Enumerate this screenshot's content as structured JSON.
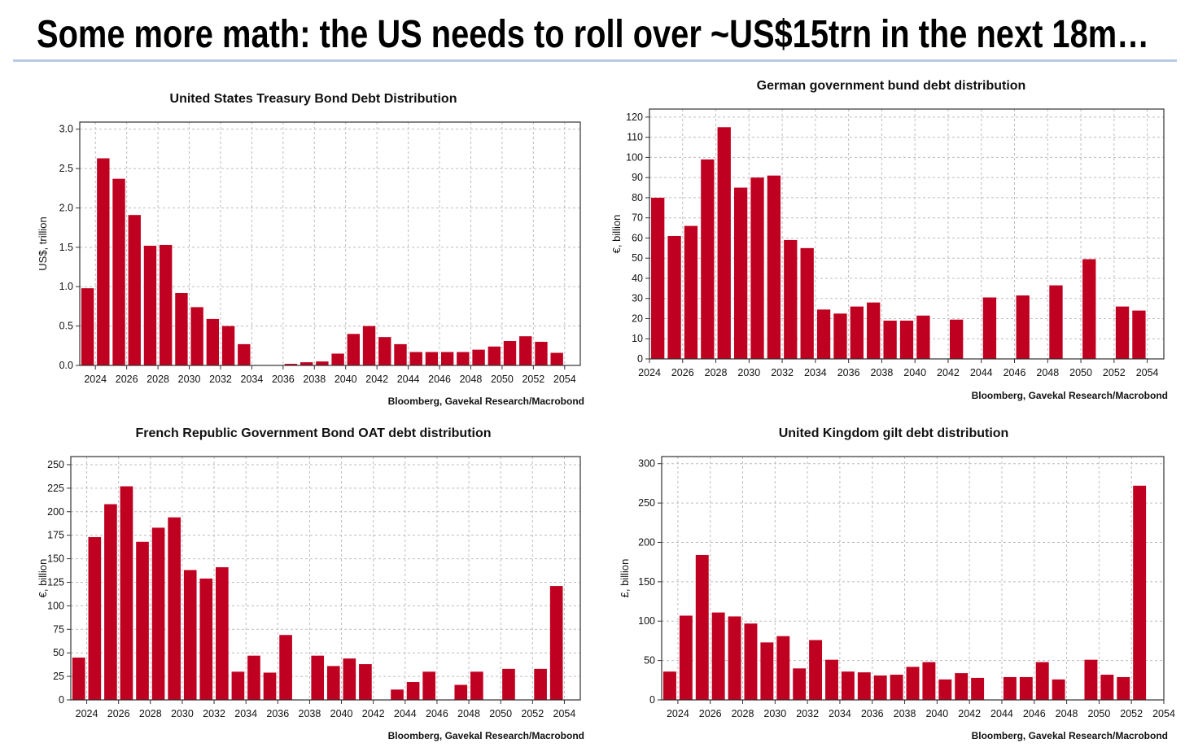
{
  "page": {
    "title": "Some more math: the US needs to roll over ~US$15trn in the next 18m…",
    "rule_color": "#b8cce4",
    "bar_color": "#c00020"
  },
  "chart_data": [
    {
      "type": "bar",
      "title": "United States Treasury Bond Debt Distribution",
      "ylabel": "US$, trillion",
      "source": "Bloomberg, Gavekal Research/Macrobond",
      "xlim": [
        2023,
        2055
      ],
      "ylim": [
        0,
        3.09
      ],
      "xticks": [
        "2024",
        "2026",
        "2028",
        "2030",
        "2032",
        "2034",
        "2036",
        "2038",
        "2040",
        "2042",
        "2044",
        "2046",
        "2048",
        "2050",
        "2052",
        "2054"
      ],
      "yticks": [
        "0.0",
        "0.5",
        "1.0",
        "1.5",
        "2.0",
        "2.5",
        "3.0"
      ],
      "grid": true,
      "years": [
        2023,
        2024,
        2025,
        2026,
        2027,
        2028,
        2029,
        2030,
        2031,
        2032,
        2033,
        2034,
        2035,
        2036,
        2037,
        2038,
        2039,
        2040,
        2041,
        2042,
        2043,
        2044,
        2045,
        2046,
        2047,
        2048,
        2049,
        2050,
        2051,
        2052,
        2053
      ],
      "values": [
        0.98,
        2.63,
        2.37,
        1.91,
        1.52,
        1.53,
        0.92,
        0.74,
        0.59,
        0.5,
        0.27,
        0,
        0,
        0.02,
        0.04,
        0.05,
        0.15,
        0.4,
        0.5,
        0.36,
        0.27,
        0.17,
        0.17,
        0.17,
        0.17,
        0.2,
        0.24,
        0.31,
        0.37,
        0.3,
        0.16
      ]
    },
    {
      "type": "bar",
      "title": "German government bund debt distribution",
      "ylabel": "€, billion",
      "source": "Bloomberg, Gavekal Research/Macrobond",
      "xlim": [
        2024,
        2055
      ],
      "ylim": [
        0,
        124
      ],
      "xticks": [
        "2024",
        "2026",
        "2028",
        "2030",
        "2032",
        "2034",
        "2036",
        "2038",
        "2040",
        "2042",
        "2044",
        "2046",
        "2048",
        "2050",
        "2052",
        "2054"
      ],
      "yticks": [
        "0",
        "10",
        "20",
        "30",
        "40",
        "50",
        "60",
        "70",
        "80",
        "90",
        "100",
        "110",
        "120"
      ],
      "grid": true,
      "years": [
        2024,
        2025,
        2026,
        2027,
        2028,
        2029,
        2030,
        2031,
        2032,
        2033,
        2034,
        2035,
        2036,
        2037,
        2038,
        2039,
        2040,
        2042,
        2044,
        2046,
        2048,
        2050,
        2052,
        2053
      ],
      "values": [
        80,
        61,
        66,
        99,
        115,
        85,
        90,
        91,
        59,
        55,
        24.5,
        22.5,
        26,
        28,
        19,
        19,
        21.5,
        19.5,
        30.5,
        31.5,
        36.5,
        49.5,
        26,
        24
      ]
    },
    {
      "type": "bar",
      "title": "French Republic Government Bond OAT debt distribution",
      "ylabel": "€, billion",
      "source": "Bloomberg, Gavekal Research/Macrobond",
      "xlim": [
        2023,
        2055
      ],
      "ylim": [
        0,
        258.6
      ],
      "xticks": [
        "2024",
        "2026",
        "2028",
        "2030",
        "2032",
        "2034",
        "2036",
        "2038",
        "2040",
        "2042",
        "2044",
        "2046",
        "2048",
        "2050",
        "2052",
        "2054"
      ],
      "yticks": [
        "0",
        "25",
        "50",
        "75",
        "100",
        "125",
        "150",
        "175",
        "200",
        "225",
        "250"
      ],
      "grid": true,
      "years": [
        2023,
        2024,
        2025,
        2026,
        2027,
        2028,
        2029,
        2030,
        2031,
        2032,
        2033,
        2034,
        2035,
        2036,
        2038,
        2039,
        2040,
        2041,
        2043,
        2044,
        2045,
        2047,
        2048,
        2050,
        2052,
        2053
      ],
      "values": [
        45,
        173,
        208,
        227,
        168,
        183,
        194,
        138,
        129,
        141,
        30,
        47,
        29,
        69,
        47,
        36,
        44,
        38,
        11,
        19,
        30,
        16,
        30,
        33,
        33,
        121
      ]
    },
    {
      "type": "bar",
      "title": "United Kingdom gilt debt distribution",
      "ylabel": "£, billion",
      "source": "Bloomberg, Gavekal Research/Macrobond",
      "xlim": [
        2023,
        2054
      ],
      "ylim": [
        0,
        309
      ],
      "xticks": [
        "2024",
        "2026",
        "2028",
        "2030",
        "2032",
        "2034",
        "2036",
        "2038",
        "2040",
        "2042",
        "2044",
        "2046",
        "2048",
        "2050",
        "2052",
        "2054"
      ],
      "yticks": [
        "0",
        "50",
        "100",
        "150",
        "200",
        "250",
        "300"
      ],
      "grid": true,
      "years": [
        2023,
        2024,
        2025,
        2026,
        2027,
        2028,
        2029,
        2030,
        2031,
        2032,
        2033,
        2034,
        2035,
        2036,
        2037,
        2038,
        2039,
        2040,
        2041,
        2042,
        2044,
        2045,
        2046,
        2047,
        2049,
        2050,
        2051,
        2052
      ],
      "values": [
        36,
        107,
        184,
        111,
        106,
        97,
        73,
        81,
        40,
        76,
        51,
        36,
        35,
        31,
        32,
        42,
        48,
        26,
        34,
        28,
        29,
        29,
        48,
        26,
        51,
        32,
        29,
        272
      ]
    }
  ]
}
